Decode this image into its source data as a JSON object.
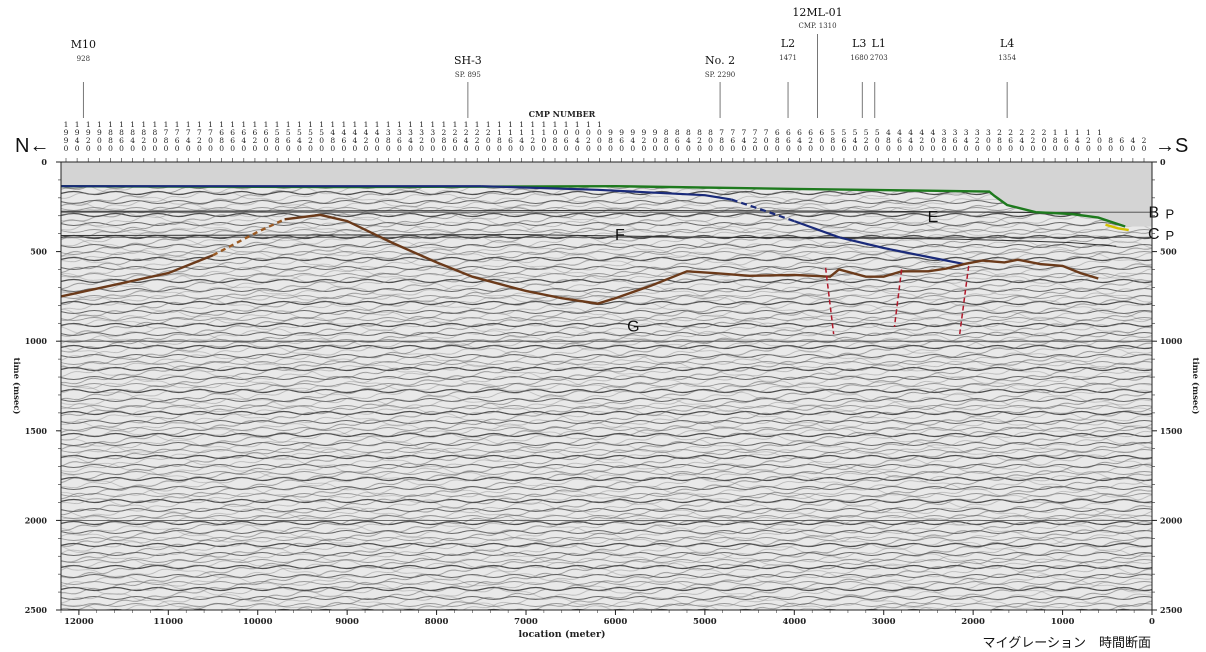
{
  "direction": {
    "left": "N←",
    "right": "→S"
  },
  "header_label": "CMP NUMBER",
  "wells": [
    {
      "name": "M10",
      "sub": "928",
      "location_m": 11950
    },
    {
      "name": "SH-3",
      "sub": "SP. 895",
      "location_m": 7650
    },
    {
      "name": "No. 2",
      "sub": "SP. 2290",
      "location_m": 4830
    },
    {
      "name": "L2",
      "sub": "1471",
      "location_m": 4070
    },
    {
      "name": "12ML-01",
      "sub": "CMP. 1310",
      "location_m": 3740
    },
    {
      "name": "L3",
      "sub": "1680",
      "location_m": 3240
    },
    {
      "name": "L1",
      "sub": "2703",
      "location_m": 3100
    },
    {
      "name": "L4",
      "sub": "1354",
      "location_m": 1620
    }
  ],
  "cmp_columns": [
    {
      "d": [
        "1",
        "9",
        "9",
        "0"
      ]
    },
    {
      "d": [
        "1",
        "9",
        "4",
        "0"
      ]
    },
    {
      "d": [
        "1",
        "9",
        "2",
        "0"
      ]
    },
    {
      "d": [
        "1",
        "9",
        "0",
        "0"
      ]
    },
    {
      "d": [
        "1",
        "8",
        "8",
        "0"
      ]
    },
    {
      "d": [
        "1",
        "8",
        "6",
        "0"
      ]
    },
    {
      "d": [
        "1",
        "8",
        "4",
        "0"
      ]
    },
    {
      "d": [
        "1",
        "8",
        "2",
        "0"
      ]
    },
    {
      "d": [
        "1",
        "8",
        "0",
        "0"
      ]
    },
    {
      "d": [
        "1",
        "7",
        "8",
        "0"
      ]
    },
    {
      "d": [
        "1",
        "7",
        "6",
        "0"
      ]
    },
    {
      "d": [
        "1",
        "7",
        "4",
        "0"
      ]
    },
    {
      "d": [
        "1",
        "7",
        "2",
        "0"
      ]
    },
    {
      "d": [
        "1",
        "7",
        "0",
        "0"
      ]
    },
    {
      "d": [
        "1",
        "6",
        "8",
        "0"
      ]
    },
    {
      "d": [
        "1",
        "6",
        "6",
        "0"
      ]
    },
    {
      "d": [
        "1",
        "6",
        "4",
        "0"
      ]
    },
    {
      "d": [
        "1",
        "6",
        "2",
        "0"
      ]
    },
    {
      "d": [
        "1",
        "6",
        "0",
        "0"
      ]
    },
    {
      "d": [
        "1",
        "5",
        "8",
        "0"
      ]
    },
    {
      "d": [
        "1",
        "5",
        "6",
        "0"
      ]
    },
    {
      "d": [
        "1",
        "5",
        "4",
        "0"
      ]
    },
    {
      "d": [
        "1",
        "5",
        "2",
        "0"
      ]
    },
    {
      "d": [
        "1",
        "5",
        "0",
        "0"
      ]
    },
    {
      "d": [
        "1",
        "4",
        "8",
        "0"
      ]
    },
    {
      "d": [
        "1",
        "4",
        "6",
        "0"
      ]
    },
    {
      "d": [
        "1",
        "4",
        "4",
        "0"
      ]
    },
    {
      "d": [
        "1",
        "4",
        "2",
        "0"
      ]
    },
    {
      "d": [
        "1",
        "4",
        "0",
        "0"
      ]
    },
    {
      "d": [
        "1",
        "3",
        "8",
        "0"
      ]
    },
    {
      "d": [
        "1",
        "3",
        "6",
        "0"
      ]
    },
    {
      "d": [
        "1",
        "3",
        "4",
        "0"
      ]
    },
    {
      "d": [
        "1",
        "3",
        "2",
        "0"
      ]
    },
    {
      "d": [
        "1",
        "3",
        "0",
        "0"
      ]
    },
    {
      "d": [
        "1",
        "2",
        "8",
        "0"
      ]
    },
    {
      "d": [
        "1",
        "2",
        "6",
        "0"
      ]
    },
    {
      "d": [
        "1",
        "2",
        "4",
        "0"
      ]
    },
    {
      "d": [
        "1",
        "2",
        "2",
        "0"
      ]
    },
    {
      "d": [
        "1",
        "2",
        "0",
        "0"
      ]
    },
    {
      "d": [
        "1",
        "1",
        "8",
        "0"
      ]
    },
    {
      "d": [
        "1",
        "1",
        "6",
        "0"
      ]
    },
    {
      "d": [
        "1",
        "1",
        "4",
        "0"
      ]
    },
    {
      "d": [
        "1",
        "1",
        "2",
        "0"
      ]
    },
    {
      "d": [
        "1",
        "1",
        "0",
        "0"
      ]
    },
    {
      "d": [
        "1",
        "0",
        "8",
        "0"
      ]
    },
    {
      "d": [
        "1",
        "0",
        "6",
        "0"
      ]
    },
    {
      "d": [
        "1",
        "0",
        "4",
        "0"
      ]
    },
    {
      "d": [
        "1",
        "0",
        "2",
        "0"
      ]
    },
    {
      "d": [
        "1",
        "0",
        "0",
        "0"
      ]
    },
    {
      "d": [
        "9",
        "8",
        "0"
      ]
    },
    {
      "d": [
        "9",
        "6",
        "0"
      ]
    },
    {
      "d": [
        "9",
        "4",
        "0"
      ]
    },
    {
      "d": [
        "9",
        "2",
        "0"
      ]
    },
    {
      "d": [
        "9",
        "0",
        "0"
      ]
    },
    {
      "d": [
        "8",
        "8",
        "0"
      ]
    },
    {
      "d": [
        "8",
        "6",
        "0"
      ]
    },
    {
      "d": [
        "8",
        "4",
        "0"
      ]
    },
    {
      "d": [
        "8",
        "2",
        "0"
      ]
    },
    {
      "d": [
        "8",
        "0",
        "0"
      ]
    },
    {
      "d": [
        "7",
        "8",
        "0"
      ]
    },
    {
      "d": [
        "7",
        "6",
        "0"
      ]
    },
    {
      "d": [
        "7",
        "4",
        "0"
      ]
    },
    {
      "d": [
        "7",
        "2",
        "0"
      ]
    },
    {
      "d": [
        "7",
        "0",
        "0"
      ]
    },
    {
      "d": [
        "6",
        "8",
        "0"
      ]
    },
    {
      "d": [
        "6",
        "6",
        "0"
      ]
    },
    {
      "d": [
        "6",
        "4",
        "0"
      ]
    },
    {
      "d": [
        "6",
        "2",
        "0"
      ]
    },
    {
      "d": [
        "6",
        "0",
        "0"
      ]
    },
    {
      "d": [
        "5",
        "8",
        "0"
      ]
    },
    {
      "d": [
        "5",
        "6",
        "0"
      ]
    },
    {
      "d": [
        "5",
        "4",
        "0"
      ]
    },
    {
      "d": [
        "5",
        "2",
        "0"
      ]
    },
    {
      "d": [
        "5",
        "0",
        "0"
      ]
    },
    {
      "d": [
        "4",
        "8",
        "0"
      ]
    },
    {
      "d": [
        "4",
        "6",
        "0"
      ]
    },
    {
      "d": [
        "4",
        "4",
        "0"
      ]
    },
    {
      "d": [
        "4",
        "2",
        "0"
      ]
    },
    {
      "d": [
        "4",
        "0",
        "0"
      ]
    },
    {
      "d": [
        "3",
        "8",
        "0"
      ]
    },
    {
      "d": [
        "3",
        "6",
        "0"
      ]
    },
    {
      "d": [
        "3",
        "4",
        "0"
      ]
    },
    {
      "d": [
        "3",
        "2",
        "0"
      ]
    },
    {
      "d": [
        "3",
        "0",
        "0"
      ]
    },
    {
      "d": [
        "2",
        "8",
        "0"
      ]
    },
    {
      "d": [
        "2",
        "6",
        "0"
      ]
    },
    {
      "d": [
        "2",
        "4",
        "0"
      ]
    },
    {
      "d": [
        "2",
        "2",
        "0"
      ]
    },
    {
      "d": [
        "2",
        "0",
        "0"
      ]
    },
    {
      "d": [
        "1",
        "8",
        "0"
      ]
    },
    {
      "d": [
        "1",
        "6",
        "0"
      ]
    },
    {
      "d": [
        "1",
        "4",
        "0"
      ]
    },
    {
      "d": [
        "1",
        "2",
        "0"
      ]
    },
    {
      "d": [
        "1",
        "0",
        "0"
      ]
    },
    {
      "d": [
        "8",
        "0"
      ]
    },
    {
      "d": [
        "6",
        "0"
      ]
    },
    {
      "d": [
        "4",
        "0"
      ]
    },
    {
      "d": [
        "2",
        "0"
      ]
    }
  ],
  "axes": {
    "x_label": "location (meter)",
    "x_ticks": [
      "12000",
      "11000",
      "10000",
      "9000",
      "8000",
      "7000",
      "6000",
      "5000",
      "4000",
      "3000",
      "2000",
      "1000",
      "0"
    ],
    "x_range_m": [
      12200,
      0
    ],
    "y_label": "time (msec)",
    "y_ticks": [
      "0",
      "500",
      "1000",
      "1500",
      "2000",
      "2500"
    ],
    "y_range_msec": [
      0,
      2500
    ]
  },
  "horizons": {
    "seafloor_green": {
      "color": "#1e7a1e",
      "points": [
        [
          12200,
          135
        ],
        [
          9000,
          140
        ],
        [
          6000,
          135
        ],
        [
          4000,
          150
        ],
        [
          2500,
          160
        ],
        [
          1820,
          165
        ],
        [
          1760,
          190
        ],
        [
          1620,
          240
        ],
        [
          1300,
          280
        ],
        [
          900,
          290
        ],
        [
          600,
          310
        ],
        [
          300,
          360
        ]
      ]
    },
    "blue": {
      "color": "#1a2a7a",
      "points": [
        [
          7500,
          135
        ],
        [
          6200,
          155
        ],
        [
          5000,
          185
        ],
        [
          4700,
          210
        ],
        [
          4400,
          260
        ],
        [
          4000,
          330
        ],
        [
          3500,
          420
        ],
        [
          3000,
          480
        ],
        [
          2500,
          530
        ],
        [
          2100,
          570
        ]
      ]
    },
    "brown_g": {
      "color": "#6b3a1a",
      "points": [
        [
          12200,
          750
        ],
        [
          11000,
          620
        ],
        [
          10500,
          520
        ],
        [
          10000,
          390
        ],
        [
          9700,
          320
        ],
        [
          9300,
          295
        ],
        [
          9000,
          330
        ],
        [
          8500,
          450
        ],
        [
          8000,
          560
        ],
        [
          7600,
          640
        ],
        [
          7000,
          720
        ],
        [
          6600,
          760
        ],
        [
          6200,
          790
        ],
        [
          6000,
          760
        ],
        [
          5600,
          690
        ],
        [
          5200,
          610
        ],
        [
          4900,
          620
        ],
        [
          4500,
          635
        ],
        [
          4000,
          630
        ],
        [
          3600,
          640
        ],
        [
          3500,
          600
        ],
        [
          3200,
          640
        ],
        [
          3000,
          640
        ],
        [
          2800,
          610
        ],
        [
          2500,
          610
        ],
        [
          2300,
          595
        ],
        [
          2100,
          570
        ],
        [
          1900,
          550
        ],
        [
          1650,
          560
        ],
        [
          1500,
          545
        ],
        [
          1250,
          570
        ],
        [
          1000,
          580
        ],
        [
          800,
          620
        ],
        [
          600,
          650
        ]
      ]
    },
    "yellow_short": {
      "color": "#d4c000",
      "points": [
        [
          520,
          350
        ],
        [
          380,
          370
        ],
        [
          260,
          380
        ]
      ]
    },
    "black_gray_r1": {
      "color": "#333333",
      "points": [
        [
          12200,
          275
        ],
        [
          6000,
          270
        ],
        [
          3000,
          275
        ],
        [
          1700,
          280
        ],
        [
          800,
          285
        ]
      ]
    },
    "black_gray_r2": {
      "color": "#333333",
      "points": [
        [
          12200,
          410
        ],
        [
          7000,
          405
        ],
        [
          5000,
          420
        ],
        [
          3000,
          425
        ],
        [
          2200,
          430
        ],
        [
          1500,
          440
        ],
        [
          900,
          450
        ],
        [
          400,
          470
        ]
      ]
    },
    "blue_lines_dashed": {
      "color": "#1a2a7a",
      "dash": true
    }
  },
  "faults": [
    {
      "top": [
        3650,
        590
      ],
      "bottom": [
        3560,
        960
      ]
    },
    {
      "top": [
        2800,
        600
      ],
      "bottom": [
        2880,
        920
      ]
    },
    {
      "top": [
        2050,
        580
      ],
      "bottom": [
        2150,
        960
      ]
    }
  ],
  "reference_lines_msec": [
    280,
    420,
    1000,
    2000
  ],
  "labels": [
    {
      "text": "E",
      "loc_m": 2450,
      "time": 335
    },
    {
      "text": "F",
      "loc_m": 5950,
      "time": 435
    },
    {
      "text": "G",
      "loc_m": 5800,
      "time": 945
    },
    {
      "text": "B",
      "loc_m": -20,
      "time": 310
    },
    {
      "text": "P",
      "loc_m": -200,
      "time": 315
    },
    {
      "text": "C",
      "loc_m": -20,
      "time": 430
    },
    {
      "text": "P",
      "loc_m": -200,
      "time": 435
    }
  ],
  "caption": "マイグレーション　時間断面"
}
